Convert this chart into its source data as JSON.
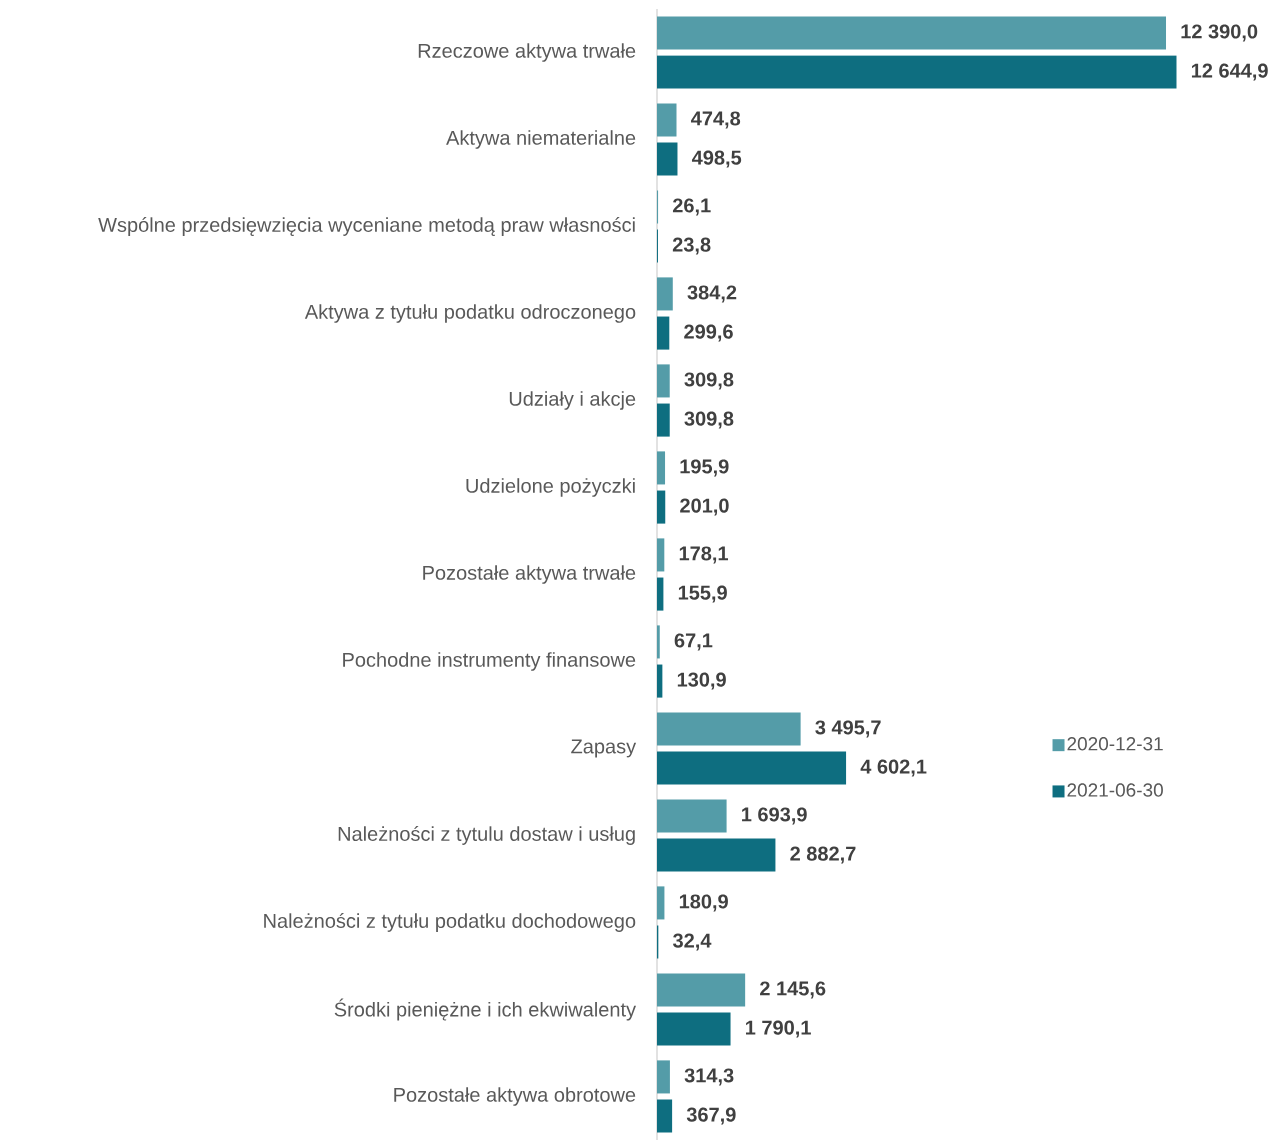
{
  "chart_data": {
    "type": "bar",
    "orientation": "horizontal",
    "categories": [
      "Rzeczowe aktywa trwałe",
      "Aktywa niematerialne",
      "Wspólne przedsięwzięcia wyceniane metodą praw własności",
      "Aktywa z tytułu podatku odroczonego",
      "Udziały i akcje",
      "Udzielone pożyczki",
      "Pozostałe aktywa trwałe",
      "Pochodne instrumenty finansowe",
      "Zapasy",
      "Należności z tytulu dostaw i usług",
      "Należności z tytułu podatku dochodowego",
      "Środki pieniężne i ich ekwiwalenty",
      "Pozostałe aktywa obrotowe"
    ],
    "series": [
      {
        "name": "2020-12-31",
        "color": "#549ca8",
        "values": [
          12390.0,
          474.8,
          26.1,
          384.2,
          309.8,
          195.9,
          178.1,
          67.1,
          3495.7,
          1693.9,
          180.9,
          2145.6,
          314.3
        ],
        "value_labels": [
          "12 390,0",
          "474,8",
          "26,1",
          "384,2",
          "309,8",
          "195,9",
          "178,1",
          "67,1",
          "3 495,7",
          "1 693,9",
          "180,9",
          "2 145,6",
          "314,3"
        ]
      },
      {
        "name": "2021-06-30",
        "color": "#0e6e80",
        "values": [
          12644.9,
          498.5,
          23.8,
          299.6,
          309.8,
          201.0,
          155.9,
          130.9,
          4602.1,
          2882.7,
          32.4,
          1790.1,
          367.9
        ],
        "value_labels": [
          "12 644,9",
          "498,5",
          "23,8",
          "299,6",
          "309,8",
          "201,0",
          "155,9",
          "130,9",
          "4 602,1",
          "2 882,7",
          "32,4",
          "1 790,1",
          "367,9"
        ]
      }
    ],
    "legend": "right",
    "tick_labels": "y"
  }
}
